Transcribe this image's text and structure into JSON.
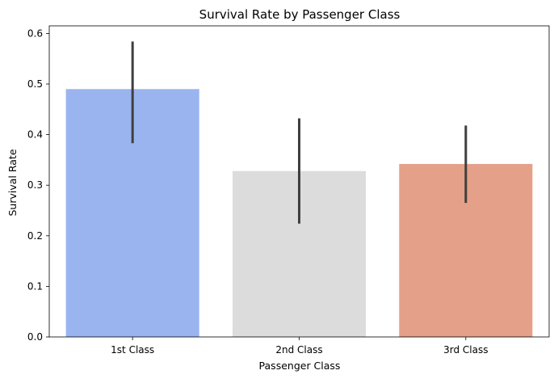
{
  "chart_data": {
    "type": "bar",
    "title": "Survival Rate by Passenger Class",
    "xlabel": "Passenger Class",
    "ylabel": "Survival Rate",
    "categories": [
      "1st Class",
      "2nd Class",
      "3rd Class"
    ],
    "values": [
      0.49,
      0.328,
      0.342
    ],
    "error_bars": [
      {
        "low": 0.383,
        "high": 0.584
      },
      {
        "low": 0.224,
        "high": 0.432
      },
      {
        "low": 0.265,
        "high": 0.418
      }
    ],
    "colors": [
      "#9ab4f0",
      "#dcdcdc",
      "#e4a088"
    ],
    "error_color": "#3f3f3f",
    "ylim": [
      0,
      0.615
    ],
    "yticks": [
      0.0,
      0.1,
      0.2,
      0.3,
      0.4,
      0.5,
      0.6
    ],
    "ytick_labels": [
      "0.0",
      "0.1",
      "0.2",
      "0.3",
      "0.4",
      "0.5",
      "0.6"
    ],
    "grid": false,
    "legend": "none"
  }
}
